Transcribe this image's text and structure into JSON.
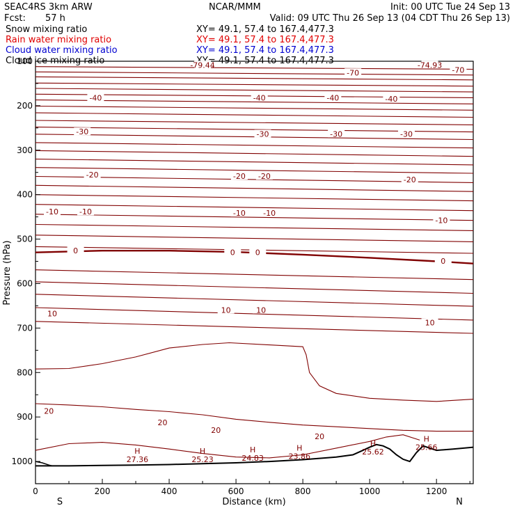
{
  "header": {
    "experiment": "SEAC4RS  3km ARW",
    "center": "NCAR/MMM",
    "init": "Init: 00 UTC Tue 24 Sep 13",
    "fcst_label": "Fcst:",
    "fcst_value": "57 h",
    "valid": "Valid: 09 UTC Thu 26 Sep 13 (04 CDT Thu 26 Sep 13)"
  },
  "fields": [
    {
      "label": "Snow mixing ratio",
      "xy": "XY=  49.1, 57.4 to 167.4,477.3",
      "color": "#000000"
    },
    {
      "label": "Rain water mixing ratio",
      "xy": "XY=  49.1, 57.4 to 167.4,477.3",
      "color": "#e00000"
    },
    {
      "label": "Cloud water mixing ratio",
      "xy": "XY=  49.1, 57.4 to 167.4,477.3",
      "color": "#0000d0"
    },
    {
      "label": "Cloud ice mixing ratio",
      "xy": "XY=  49.1, 57.4 to 167.4,477.3",
      "color": "#000000"
    }
  ],
  "chart_data": {
    "type": "line",
    "title": "",
    "xlabel": "Distance (km)",
    "ylabel": "Pressure (hPa)",
    "xlim": [
      0,
      1310
    ],
    "ylim": [
      100,
      1050
    ],
    "x_ticks": [
      0,
      200,
      400,
      600,
      800,
      1000,
      1200
    ],
    "y_ticks": [
      100,
      200,
      300,
      400,
      500,
      600,
      700,
      800,
      900,
      1000
    ],
    "x_tick_labels": [
      "0",
      "200",
      "400",
      "600",
      "800",
      "1000",
      "1200"
    ],
    "y_tick_labels": [
      "100",
      "200",
      "300",
      "400",
      "500",
      "600",
      "700",
      "800",
      "900",
      "1000"
    ],
    "direction_left": "S",
    "direction_right": "N",
    "contour_color": "#800000",
    "freezing_level_color": "#800000",
    "terrain_color": "#000000",
    "isotherms": [
      {
        "level": "",
        "x": [
          0,
          1310
        ],
        "y": [
          112,
          118
        ]
      },
      {
        "level": "",
        "x": [
          0,
          1310
        ],
        "y": [
          124,
          131
        ]
      },
      {
        "level": "",
        "x": [
          0,
          1310
        ],
        "y": [
          135,
          142
        ]
      },
      {
        "level": "",
        "x": [
          0,
          1310
        ],
        "y": [
          149,
          156
        ]
      },
      {
        "level": "",
        "x": [
          0,
          1310
        ],
        "y": [
          161,
          169
        ]
      },
      {
        "level": "",
        "x": [
          0,
          1310
        ],
        "y": [
          174,
          182
        ]
      },
      {
        "level": "",
        "x": [
          0,
          1310
        ],
        "y": [
          187,
          196
        ]
      },
      {
        "level": "",
        "x": [
          0,
          1310
        ],
        "y": [
          201,
          210
        ]
      },
      {
        "level": "",
        "x": [
          0,
          1310
        ],
        "y": [
          216,
          226
        ]
      },
      {
        "level": "",
        "x": [
          0,
          1310
        ],
        "y": [
          233,
          243
        ]
      },
      {
        "level": "",
        "x": [
          0,
          1310
        ],
        "y": [
          248,
          259
        ]
      },
      {
        "level": "",
        "x": [
          0,
          1310
        ],
        "y": [
          264,
          276
        ]
      },
      {
        "level": "",
        "x": [
          0,
          1310
        ],
        "y": [
          283,
          295
        ]
      },
      {
        "level": "",
        "x": [
          0,
          1310
        ],
        "y": [
          301,
          314
        ]
      },
      {
        "level": "",
        "x": [
          0,
          1310
        ],
        "y": [
          320,
          333
        ]
      },
      {
        "level": "",
        "x": [
          0,
          1310
        ],
        "y": [
          339,
          352
        ]
      },
      {
        "level": "",
        "x": [
          0,
          1310
        ],
        "y": [
          359,
          373
        ]
      },
      {
        "level": "",
        "x": [
          0,
          1310
        ],
        "y": [
          379,
          393
        ]
      },
      {
        "level": "",
        "x": [
          0,
          1310
        ],
        "y": [
          400,
          414
        ]
      },
      {
        "level": "",
        "x": [
          0,
          1310
        ],
        "y": [
          422,
          436
        ]
      },
      {
        "level": "",
        "x": [
          0,
          1310
        ],
        "y": [
          444,
          458
        ]
      },
      {
        "level": "",
        "x": [
          0,
          1310
        ],
        "y": [
          467,
          481
        ]
      },
      {
        "level": "",
        "x": [
          0,
          1310
        ],
        "y": [
          491,
          506
        ]
      },
      {
        "level": "",
        "x": [
          0,
          1310
        ],
        "y": [
          517,
          532
        ]
      },
      {
        "level": "",
        "x": [
          0,
          1310
        ],
        "y": [
          569,
          591
        ]
      },
      {
        "level": "",
        "x": [
          0,
          1310
        ],
        "y": [
          596,
          622
        ]
      },
      {
        "level": "",
        "x": [
          0,
          1310
        ],
        "y": [
          624,
          651
        ]
      },
      {
        "level": "",
        "x": [
          0,
          1310
        ],
        "y": [
          654,
          682
        ]
      },
      {
        "level": "",
        "x": [
          0,
          1310
        ],
        "y": [
          685,
          712
        ]
      }
    ],
    "freezing_level": {
      "x": [
        0,
        200,
        400,
        600,
        800,
        1000,
        1200,
        1310
      ],
      "y": [
        530,
        526,
        526,
        529,
        535,
        542,
        550,
        555
      ]
    },
    "contour_800": {
      "x": [
        0,
        100,
        200,
        300,
        400,
        500,
        580,
        700,
        800,
        810,
        820,
        850,
        900,
        1000,
        1100,
        1200,
        1310
      ],
      "y": [
        792,
        791,
        780,
        765,
        745,
        737,
        733,
        738,
        742,
        760,
        800,
        830,
        847,
        858,
        862,
        865,
        860
      ]
    },
    "contour_20a": {
      "x": [
        0,
        100,
        200,
        300,
        400,
        500,
        600,
        700,
        800,
        900,
        1000,
        1100,
        1200,
        1310
      ],
      "y": [
        870,
        873,
        877,
        883,
        888,
        895,
        905,
        912,
        918,
        922,
        926,
        930,
        932,
        932
      ]
    },
    "contour_20b": {
      "x": [
        0,
        100,
        200,
        300,
        400,
        500,
        600,
        700,
        800,
        900,
        1000,
        1050,
        1100,
        1150
      ],
      "y": [
        975,
        960,
        957,
        963,
        972,
        982,
        990,
        992,
        985,
        970,
        955,
        945,
        940,
        952
      ]
    },
    "terrain": {
      "x": [
        0,
        100,
        200,
        300,
        400,
        500,
        600,
        700,
        800,
        850,
        900,
        950,
        980,
        1000,
        1020,
        1040,
        1060,
        1080,
        1100,
        1120,
        1140,
        1160,
        1180,
        1200,
        1250,
        1310
      ],
      "y": [
        1010,
        1010,
        1009,
        1008,
        1007,
        1005,
        1003,
        1000,
        996,
        993,
        990,
        985,
        975,
        968,
        962,
        965,
        972,
        985,
        995,
        1000,
        980,
        965,
        970,
        975,
        972,
        968
      ]
    },
    "terrain_lower": {
      "x": [
        0,
        20,
        40,
        50
      ],
      "y": [
        1000,
        1003,
        1008,
        1010
      ]
    },
    "contour_labels": [
      {
        "text": "-79.44",
        "x": 500,
        "y": 110
      },
      {
        "text": "-74.93",
        "x": 1180,
        "y": 110
      },
      {
        "text": "-70",
        "x": 950,
        "y": 127
      },
      {
        "text": "-70",
        "x": 1265,
        "y": 121
      },
      {
        "text": "-40",
        "x": 180,
        "y": 184
      },
      {
        "text": "-40",
        "x": 670,
        "y": 184
      },
      {
        "text": "-40",
        "x": 890,
        "y": 184
      },
      {
        "text": "-40",
        "x": 1065,
        "y": 186
      },
      {
        "text": "-30",
        "x": 140,
        "y": 260
      },
      {
        "text": "-30",
        "x": 680,
        "y": 265
      },
      {
        "text": "-30",
        "x": 900,
        "y": 265
      },
      {
        "text": "-30",
        "x": 1110,
        "y": 265
      },
      {
        "text": "-20",
        "x": 170,
        "y": 357
      },
      {
        "text": "-20",
        "x": 610,
        "y": 360
      },
      {
        "text": "-20",
        "x": 685,
        "y": 360
      },
      {
        "text": "-20",
        "x": 1120,
        "y": 368
      },
      {
        "text": "-10",
        "x": 50,
        "y": 440
      },
      {
        "text": "-10",
        "x": 150,
        "y": 440
      },
      {
        "text": "-10",
        "x": 610,
        "y": 443
      },
      {
        "text": "-10",
        "x": 700,
        "y": 443
      },
      {
        "text": "-10",
        "x": 1215,
        "y": 459
      },
      {
        "text": "0",
        "x": 120,
        "y": 527
      },
      {
        "text": "0",
        "x": 590,
        "y": 531
      },
      {
        "text": "0",
        "x": 665,
        "y": 531
      },
      {
        "text": "0",
        "x": 1220,
        "y": 551
      },
      {
        "text": "10",
        "x": 50,
        "y": 669
      },
      {
        "text": "10",
        "x": 570,
        "y": 661
      },
      {
        "text": "10",
        "x": 675,
        "y": 661
      },
      {
        "text": "10",
        "x": 1180,
        "y": 689
      },
      {
        "text": "20",
        "x": 40,
        "y": 888
      },
      {
        "text": "20",
        "x": 380,
        "y": 914
      },
      {
        "text": "20",
        "x": 540,
        "y": 931
      },
      {
        "text": "20",
        "x": 850,
        "y": 945
      }
    ],
    "high_markers": [
      {
        "text": "27.36",
        "x": 305,
        "y": 995
      },
      {
        "text": "25.23",
        "x": 500,
        "y": 995
      },
      {
        "text": "24.83",
        "x": 650,
        "y": 992
      },
      {
        "text": "23.86",
        "x": 790,
        "y": 988
      },
      {
        "text": "25.62",
        "x": 1010,
        "y": 978
      },
      {
        "text": "25.66",
        "x": 1170,
        "y": 968
      }
    ]
  }
}
